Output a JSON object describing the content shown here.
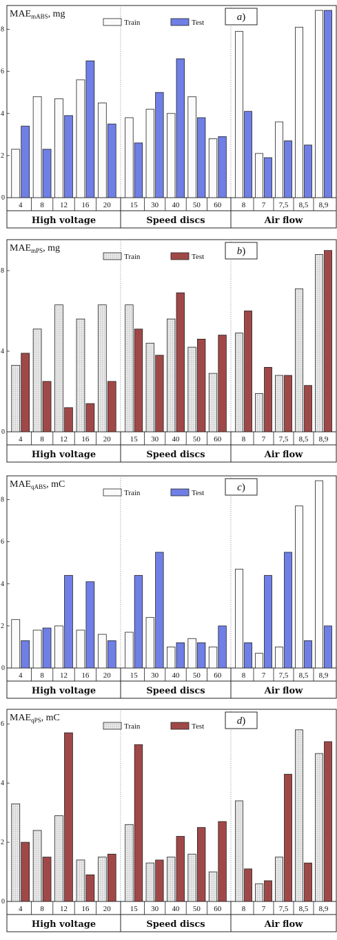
{
  "legend": {
    "train": "Train",
    "test": "Test"
  },
  "colors": {
    "train_fill": "#fbfbfb",
    "train_hatch_fill": "#ececec",
    "test_blue": "#6f7fe6",
    "test_red": "#a04848",
    "stroke": "#222222"
  },
  "groups": [
    "High voltage",
    "Speed discs",
    "Air flow"
  ],
  "chart_data": [
    {
      "type": "bar",
      "panel_label": "a)",
      "ylabel_main": "MAE",
      "ylabel_sub": "mABS",
      "ylabel_unit": ", mg",
      "train_style": "plain",
      "test_color": "blue",
      "ylim": [
        0,
        9
      ],
      "yticks": [
        2,
        4,
        6,
        8
      ],
      "groups": [
        {
          "name": "High voltage",
          "categories": [
            "4",
            "8",
            "12",
            "16",
            "20"
          ],
          "train": [
            2.3,
            4.8,
            4.7,
            5.6,
            4.5
          ],
          "test": [
            3.4,
            2.3,
            3.9,
            6.5,
            3.5
          ]
        },
        {
          "name": "Speed discs",
          "categories": [
            "15",
            "30",
            "40",
            "50",
            "60"
          ],
          "train": [
            3.8,
            4.2,
            4.0,
            4.8,
            2.8
          ],
          "test": [
            2.6,
            5.0,
            6.6,
            3.8,
            2.9
          ]
        },
        {
          "name": "Air flow",
          "categories": [
            "8",
            "7",
            "7,5",
            "8,5",
            "8,9"
          ],
          "train": [
            7.9,
            2.1,
            3.6,
            8.1,
            8.9
          ],
          "test": [
            4.1,
            1.9,
            2.7,
            2.5,
            8.9
          ]
        }
      ]
    },
    {
      "type": "bar",
      "panel_label": "b)",
      "ylabel_main": "MAE",
      "ylabel_sub": "mPS",
      "ylabel_unit": ", mg",
      "train_style": "hatched",
      "test_color": "red",
      "ylim": [
        0,
        9.4
      ],
      "yticks": [
        4,
        8
      ],
      "groups": [
        {
          "name": "High voltage",
          "categories": [
            "4",
            "8",
            "12",
            "16",
            "20"
          ],
          "train": [
            3.3,
            5.1,
            6.3,
            5.6,
            6.3
          ],
          "test": [
            3.9,
            2.5,
            1.2,
            1.4,
            2.5
          ]
        },
        {
          "name": "Speed discs",
          "categories": [
            "15",
            "30",
            "40",
            "50",
            "60"
          ],
          "train": [
            6.3,
            4.4,
            5.6,
            4.2,
            2.9
          ],
          "test": [
            5.1,
            3.8,
            6.9,
            4.6,
            4.8
          ]
        },
        {
          "name": "Air flow",
          "categories": [
            "8",
            "7",
            "7,5",
            "8,5",
            "8,9"
          ],
          "train": [
            4.9,
            1.9,
            2.8,
            7.1,
            8.8
          ],
          "test": [
            6.0,
            3.2,
            2.8,
            2.3,
            9.0
          ]
        }
      ]
    },
    {
      "type": "bar",
      "panel_label": "c)",
      "ylabel_main": "MAE",
      "ylabel_sub": "qABS",
      "ylabel_unit": ", mC",
      "train_style": "plain",
      "test_color": "blue",
      "ylim": [
        0,
        9
      ],
      "yticks": [
        2,
        4,
        6,
        8
      ],
      "groups": [
        {
          "name": "High voltage",
          "categories": [
            "4",
            "8",
            "12",
            "16",
            "20"
          ],
          "train": [
            2.3,
            1.8,
            2.0,
            1.8,
            1.6
          ],
          "test": [
            1.3,
            1.9,
            4.4,
            4.1,
            1.3
          ]
        },
        {
          "name": "Speed discs",
          "categories": [
            "15",
            "30",
            "40",
            "50",
            "60"
          ],
          "train": [
            1.7,
            2.4,
            1.0,
            1.4,
            1.0
          ],
          "test": [
            4.4,
            5.5,
            1.2,
            1.2,
            2.0
          ]
        },
        {
          "name": "Air flow",
          "categories": [
            "8",
            "7",
            "7,5",
            "8,5",
            "8,9"
          ],
          "train": [
            4.7,
            0.7,
            1.0,
            7.7,
            8.9
          ],
          "test": [
            1.2,
            4.4,
            5.5,
            1.3,
            2.0
          ]
        }
      ]
    },
    {
      "type": "bar",
      "panel_label": "d)",
      "ylabel_main": "MAE",
      "ylabel_sub": "qPS",
      "ylabel_unit": ", mC",
      "train_style": "hatched",
      "test_color": "red",
      "ylim": [
        0,
        6.4
      ],
      "yticks": [
        2,
        4,
        6
      ],
      "groups": [
        {
          "name": "High voltage",
          "categories": [
            "4",
            "8",
            "12",
            "16",
            "20"
          ],
          "train": [
            3.3,
            2.4,
            2.9,
            1.4,
            1.5
          ],
          "test": [
            2.0,
            1.5,
            5.7,
            0.9,
            1.6
          ]
        },
        {
          "name": "Speed discs",
          "categories": [
            "15",
            "30",
            "40",
            "50",
            "60"
          ],
          "train": [
            2.6,
            1.3,
            1.5,
            1.6,
            1.0
          ],
          "test": [
            5.3,
            1.4,
            2.2,
            2.5,
            2.7
          ]
        },
        {
          "name": "Air flow",
          "categories": [
            "8",
            "7",
            "7,5",
            "8,5",
            "8,9"
          ],
          "train": [
            3.4,
            0.6,
            1.5,
            5.8,
            5.0
          ],
          "test": [
            1.1,
            0.7,
            4.3,
            1.3,
            5.4
          ]
        }
      ]
    }
  ]
}
